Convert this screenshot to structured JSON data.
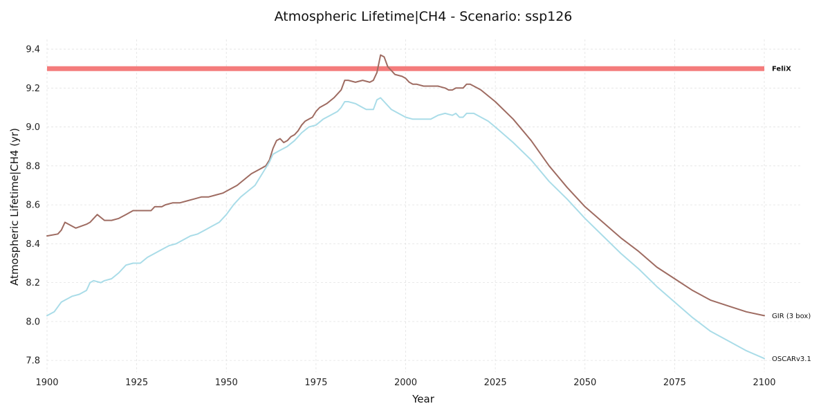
{
  "chart_data": {
    "type": "line",
    "title": "Atmospheric Lifetime|CH4 - Scenario: ssp126",
    "xlabel": "Year",
    "ylabel": "Atmospheric Lifetime|CH4 (yr)",
    "xlim": [
      1900,
      2110
    ],
    "ylim": [
      7.74,
      9.45
    ],
    "xticks": [
      1900,
      1925,
      1950,
      1975,
      2000,
      2025,
      2050,
      2075,
      2100
    ],
    "yticks": [
      7.8,
      8.0,
      8.2,
      8.4,
      8.6,
      8.8,
      9.0,
      9.2,
      9.4
    ],
    "ytick_labels": [
      "7.8",
      "8.0",
      "8.2",
      "8.4",
      "8.6",
      "8.8",
      "9.0",
      "9.2",
      "9.4"
    ],
    "grid": true,
    "legend": "end-of-line labels",
    "series": [
      {
        "name": "FeliX",
        "color": "#f47c7c",
        "style": "constant",
        "x": [
          1900,
          2100
        ],
        "values": [
          9.3,
          9.3
        ]
      },
      {
        "name": "GIR (3 box)",
        "color": "#9e6b61",
        "x": [
          1900,
          1903,
          1904,
          1905,
          1907,
          1908,
          1911,
          1912,
          1914,
          1916,
          1918,
          1920,
          1922,
          1924,
          1926,
          1928,
          1929,
          1930,
          1932,
          1933,
          1935,
          1937,
          1939,
          1941,
          1943,
          1945,
          1947,
          1949,
          1951,
          1953,
          1955,
          1957,
          1959,
          1961,
          1962,
          1963,
          1964,
          1965,
          1966,
          1967,
          1968,
          1969,
          1970,
          1971,
          1972,
          1973,
          1974,
          1975,
          1976,
          1978,
          1980,
          1982,
          1983,
          1984,
          1986,
          1988,
          1990,
          1991,
          1992,
          1993,
          1994,
          1995,
          1996,
          1997,
          1999,
          2000,
          2001,
          2002,
          2003,
          2005,
          2007,
          2009,
          2011,
          2012,
          2013,
          2014,
          2016,
          2017,
          2018,
          2019,
          2020,
          2021,
          2025,
          2030,
          2035,
          2040,
          2045,
          2050,
          2055,
          2060,
          2065,
          2070,
          2075,
          2080,
          2085,
          2090,
          2095,
          2100
        ],
        "values": [
          8.44,
          8.45,
          8.47,
          8.51,
          8.49,
          8.48,
          8.5,
          8.51,
          8.55,
          8.52,
          8.52,
          8.53,
          8.55,
          8.57,
          8.57,
          8.57,
          8.57,
          8.59,
          8.59,
          8.6,
          8.61,
          8.61,
          8.62,
          8.63,
          8.64,
          8.64,
          8.65,
          8.66,
          8.68,
          8.7,
          8.73,
          8.76,
          8.78,
          8.8,
          8.83,
          8.89,
          8.93,
          8.94,
          8.92,
          8.93,
          8.95,
          8.96,
          8.98,
          9.01,
          9.03,
          9.04,
          9.05,
          9.08,
          9.1,
          9.12,
          9.15,
          9.19,
          9.24,
          9.24,
          9.23,
          9.24,
          9.23,
          9.24,
          9.28,
          9.37,
          9.36,
          9.31,
          9.29,
          9.27,
          9.26,
          9.25,
          9.23,
          9.22,
          9.22,
          9.21,
          9.21,
          9.21,
          9.2,
          9.19,
          9.19,
          9.2,
          9.2,
          9.22,
          9.22,
          9.21,
          9.2,
          9.19,
          9.13,
          9.04,
          8.93,
          8.8,
          8.69,
          8.59,
          8.51,
          8.43,
          8.36,
          8.28,
          8.22,
          8.16,
          8.11,
          8.08,
          8.05,
          8.03
        ]
      },
      {
        "name": "OSCARv3.1",
        "color": "#a9dce8",
        "x": [
          1900,
          1902,
          1904,
          1905,
          1906,
          1907,
          1909,
          1911,
          1912,
          1913,
          1915,
          1916,
          1918,
          1920,
          1922,
          1924,
          1926,
          1928,
          1930,
          1932,
          1934,
          1936,
          1938,
          1940,
          1942,
          1944,
          1946,
          1948,
          1950,
          1952,
          1954,
          1956,
          1958,
          1960,
          1962,
          1963,
          1964,
          1965,
          1967,
          1969,
          1971,
          1973,
          1975,
          1977,
          1979,
          1981,
          1982,
          1983,
          1984,
          1986,
          1988,
          1989,
          1991,
          1992,
          1993,
          1994,
          1996,
          1998,
          2000,
          2002,
          2004,
          2007,
          2009,
          2011,
          2013,
          2014,
          2015,
          2016,
          2017,
          2019,
          2021,
          2023,
          2025,
          2030,
          2035,
          2040,
          2045,
          2050,
          2055,
          2060,
          2065,
          2070,
          2075,
          2080,
          2085,
          2090,
          2095,
          2100
        ],
        "values": [
          8.03,
          8.05,
          8.1,
          8.11,
          8.12,
          8.13,
          8.14,
          8.16,
          8.2,
          8.21,
          8.2,
          8.21,
          8.22,
          8.25,
          8.29,
          8.3,
          8.3,
          8.33,
          8.35,
          8.37,
          8.39,
          8.4,
          8.42,
          8.44,
          8.45,
          8.47,
          8.49,
          8.51,
          8.55,
          8.6,
          8.64,
          8.67,
          8.7,
          8.76,
          8.82,
          8.86,
          8.87,
          8.88,
          8.9,
          8.93,
          8.97,
          9.0,
          9.01,
          9.04,
          9.06,
          9.08,
          9.1,
          9.13,
          9.13,
          9.12,
          9.1,
          9.09,
          9.09,
          9.14,
          9.15,
          9.13,
          9.09,
          9.07,
          9.05,
          9.04,
          9.04,
          9.04,
          9.06,
          9.07,
          9.06,
          9.07,
          9.05,
          9.05,
          9.07,
          9.07,
          9.05,
          9.03,
          9.0,
          8.92,
          8.83,
          8.72,
          8.63,
          8.53,
          8.44,
          8.35,
          8.27,
          8.18,
          8.1,
          8.02,
          7.95,
          7.9,
          7.85,
          7.81
        ]
      }
    ]
  }
}
